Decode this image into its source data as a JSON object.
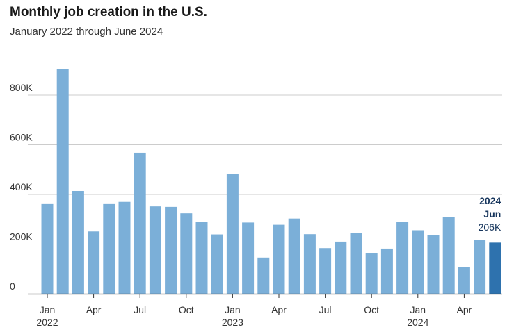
{
  "chart_data": {
    "type": "bar",
    "title": "Monthly job creation in the U.S.",
    "subtitle": "January 2022 through June 2024",
    "xlabel": "",
    "ylabel": "",
    "ylim": [
      0,
      900
    ],
    "yticks": [
      {
        "value": 0,
        "label": "0"
      },
      {
        "value": 200,
        "label": "200K"
      },
      {
        "value": 400,
        "label": "400K"
      },
      {
        "value": 600,
        "label": "600K"
      },
      {
        "value": 800,
        "label": "800K"
      }
    ],
    "categories": [
      "Jan 2022",
      "Feb 2022",
      "Mar 2022",
      "Apr 2022",
      "May 2022",
      "Jun 2022",
      "Jul 2022",
      "Aug 2022",
      "Sep 2022",
      "Oct 2022",
      "Nov 2022",
      "Dec 2022",
      "Jan 2023",
      "Feb 2023",
      "Mar 2023",
      "Apr 2023",
      "May 2023",
      "Jun 2023",
      "Jul 2023",
      "Aug 2023",
      "Sep 2023",
      "Oct 2023",
      "Nov 2023",
      "Dec 2023",
      "Jan 2024",
      "Feb 2024",
      "Mar 2024",
      "Apr 2024",
      "May 2024",
      "Jun 2024"
    ],
    "values": [
      364,
      904,
      414,
      251,
      364,
      370,
      568,
      352,
      350,
      324,
      290,
      239,
      482,
      287,
      146,
      278,
      303,
      240,
      184,
      210,
      246,
      165,
      182,
      290,
      256,
      236,
      310,
      108,
      218,
      206
    ],
    "xtick_labels": [
      {
        "index": 0,
        "month": "Jan",
        "year": "2022"
      },
      {
        "index": 3,
        "month": "Apr",
        "year": ""
      },
      {
        "index": 6,
        "month": "Jul",
        "year": ""
      },
      {
        "index": 9,
        "month": "Oct",
        "year": ""
      },
      {
        "index": 12,
        "month": "Jan",
        "year": "2023"
      },
      {
        "index": 15,
        "month": "Apr",
        "year": ""
      },
      {
        "index": 18,
        "month": "Jul",
        "year": ""
      },
      {
        "index": 21,
        "month": "Oct",
        "year": ""
      },
      {
        "index": 24,
        "month": "Jan",
        "year": "2024"
      },
      {
        "index": 27,
        "month": "Apr",
        "year": ""
      }
    ],
    "highlight": {
      "index": 29,
      "year": "2024",
      "month": "Jun",
      "value_label": "206K"
    },
    "colors": {
      "bar": "#7bafd8",
      "highlight": "#2e72ae",
      "highlight_text": "#17365d",
      "grid": "#cccccc",
      "axis": "#333333"
    }
  }
}
